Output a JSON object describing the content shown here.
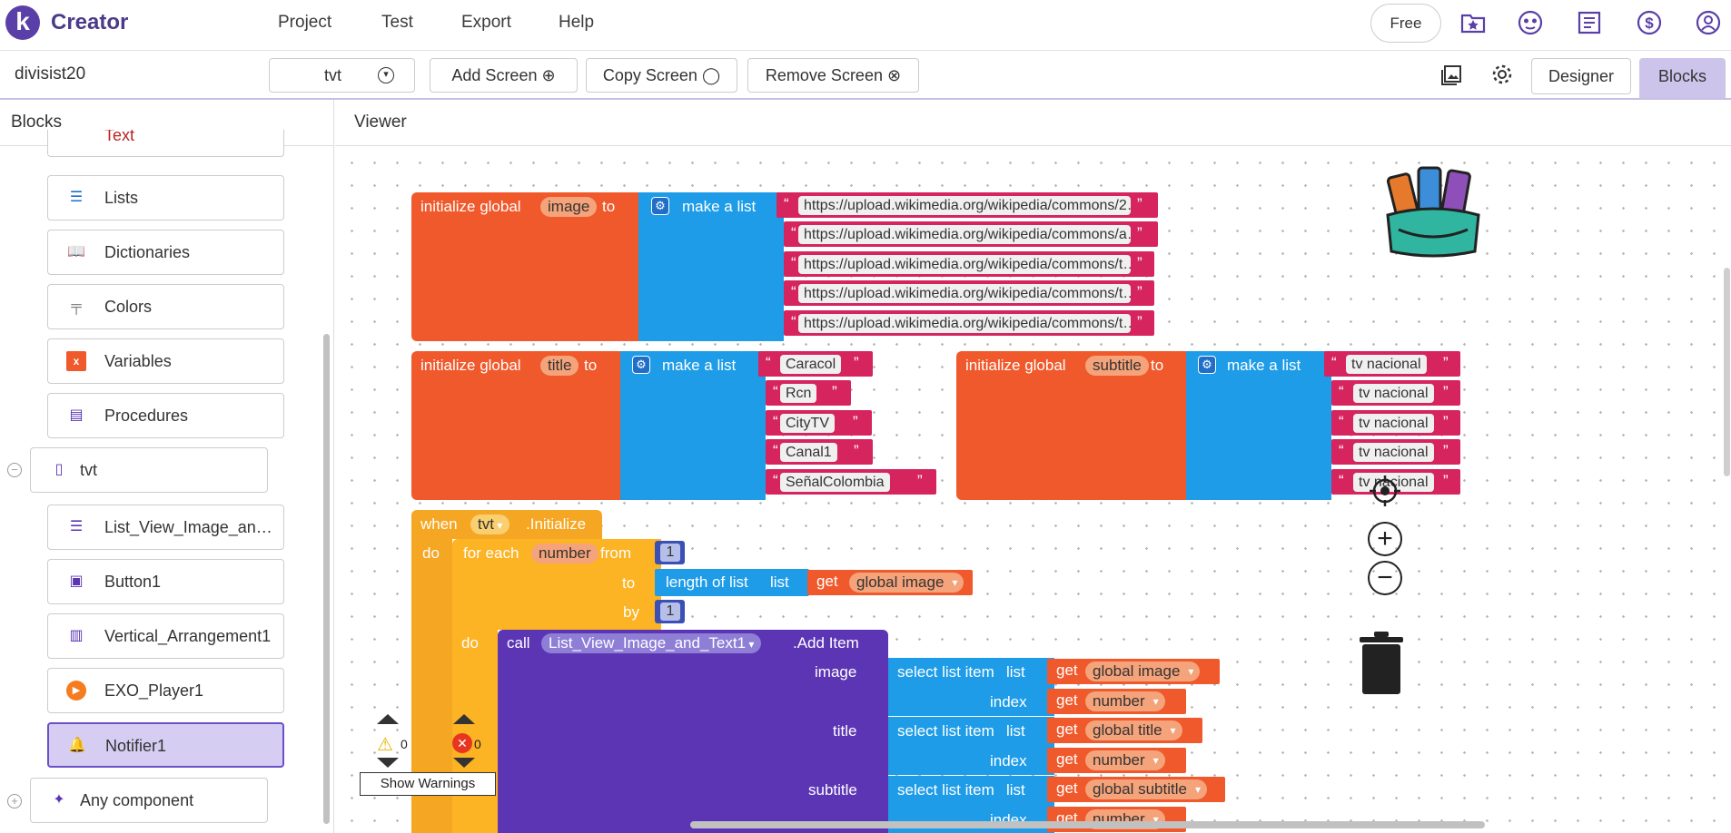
{
  "app": {
    "logo_letter": "k",
    "name": "Creator"
  },
  "menu": [
    "Project",
    "Test",
    "Export",
    "Help"
  ],
  "top_right": {
    "free_label": "Free"
  },
  "project": {
    "name": "divisist20"
  },
  "screen_select": {
    "value": "tvt"
  },
  "toolbar": {
    "add_screen": "Add Screen",
    "copy_screen": "Copy Screen",
    "remove_screen": "Remove Screen",
    "designer": "Designer",
    "blocks": "Blocks"
  },
  "blocks_panel": {
    "title": "Blocks",
    "top_partial": "Text",
    "builtins": [
      {
        "label": "Lists",
        "color": "#1f6fc8"
      },
      {
        "label": "Dictionaries",
        "color": "#2a54c8"
      },
      {
        "label": "Colors",
        "color": "#777777"
      },
      {
        "label": "Variables",
        "color": "#f0592b"
      },
      {
        "label": "Procedures",
        "color": "#5c35b5"
      }
    ],
    "screen_item": "tvt",
    "components": [
      "List_View_Image_and_Text1",
      "Button1",
      "Vertical_Arrangement1",
      "EXO_Player1",
      "Notifier1"
    ],
    "any_component": "Any component"
  },
  "viewer": {
    "title": "Viewer"
  },
  "blocks": {
    "init_image": {
      "kw_init": "initialize global",
      "var": "image",
      "kw_to": "to",
      "make_list": "make a list",
      "items": [
        "https://upload.wikimedia.org/wikipedia/commons/2…",
        "https://upload.wikimedia.org/wikipedia/commons/a…",
        "https://upload.wikimedia.org/wikipedia/commons/t…",
        "https://upload.wikimedia.org/wikipedia/commons/t…",
        "https://upload.wikimedia.org/wikipedia/commons/t…"
      ]
    },
    "init_title": {
      "kw_init": "initialize global",
      "var": "title",
      "kw_to": "to",
      "make_list": "make a list",
      "items": [
        "Caracol",
        "Rcn",
        "CityTV",
        "Canal1",
        "SeñalColombia"
      ]
    },
    "init_subtitle": {
      "kw_init": "initialize global",
      "var": "subtitle",
      "kw_to": "to",
      "make_list": "make a list",
      "items": [
        "tv nacional",
        "tv nacional",
        "tv nacional",
        "tv nacional",
        "tv nacional"
      ]
    },
    "event": {
      "when": "when",
      "component": "tvt",
      "event": ".Initialize",
      "do": "do"
    },
    "loop": {
      "for_each": "for each",
      "var": "number",
      "from": "from",
      "from_val": "1",
      "to": "to",
      "length_of_list": "length of list",
      "list": "list",
      "get": "get",
      "get_var": "global image",
      "by": "by",
      "by_val": "1",
      "do": "do"
    },
    "call": {
      "call": "call",
      "component": "List_View_Image_and_Text1",
      "method": ".Add Item",
      "params": [
        {
          "name": "image",
          "select": "select list item",
          "list": "list",
          "get": "get",
          "list_var": "global image",
          "index": "index",
          "index_var": "number"
        },
        {
          "name": "title",
          "select": "select list item",
          "list": "list",
          "get": "get",
          "list_var": "global title",
          "index": "index",
          "index_var": "number"
        },
        {
          "name": "subtitle",
          "select": "select list item",
          "list": "list",
          "get": "get",
          "list_var": "global subtitle",
          "index": "index",
          "index_var": "number"
        }
      ]
    }
  },
  "warnings": {
    "warning_count": "0",
    "error_count": "0",
    "show_warnings": "Show Warnings"
  }
}
